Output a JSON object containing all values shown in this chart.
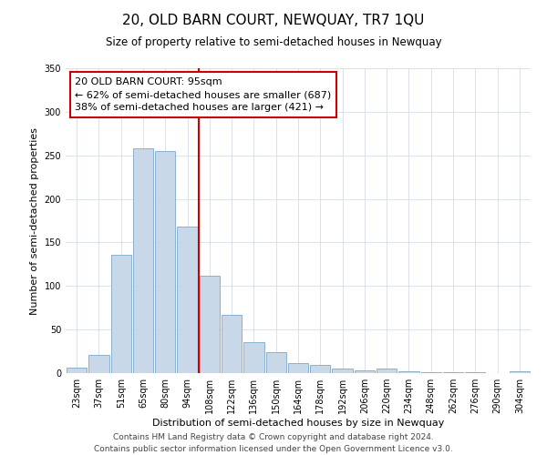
{
  "title": "20, OLD BARN COURT, NEWQUAY, TR7 1QU",
  "subtitle": "Size of property relative to semi-detached houses in Newquay",
  "xlabel": "Distribution of semi-detached houses by size in Newquay",
  "ylabel": "Number of semi-detached properties",
  "footer_line1": "Contains HM Land Registry data © Crown copyright and database right 2024.",
  "footer_line2": "Contains public sector information licensed under the Open Government Licence v3.0.",
  "bar_labels": [
    "23sqm",
    "37sqm",
    "51sqm",
    "65sqm",
    "80sqm",
    "94sqm",
    "108sqm",
    "122sqm",
    "136sqm",
    "150sqm",
    "164sqm",
    "178sqm",
    "192sqm",
    "206sqm",
    "220sqm",
    "234sqm",
    "248sqm",
    "262sqm",
    "276sqm",
    "290sqm",
    "304sqm"
  ],
  "bar_values": [
    6,
    21,
    136,
    258,
    255,
    168,
    112,
    67,
    36,
    24,
    12,
    9,
    5,
    3,
    5,
    2,
    1,
    1,
    1,
    0,
    2
  ],
  "bar_color": "#c8d8e8",
  "bar_edge_color": "#7ba7c7",
  "property_label": "20 OLD BARN COURT: 95sqm",
  "pct_smaller": 62,
  "n_smaller": 687,
  "pct_larger": 38,
  "n_larger": 421,
  "vline_bin_index": 5,
  "ylim": [
    0,
    350
  ],
  "yticks": [
    0,
    50,
    100,
    150,
    200,
    250,
    300,
    350
  ],
  "annotation_box_color": "#ffffff",
  "annotation_box_edge": "#cc0000",
  "vline_color": "#cc0000",
  "title_fontsize": 11,
  "subtitle_fontsize": 8.5,
  "axis_label_fontsize": 8,
  "tick_fontsize": 7,
  "annotation_fontsize": 8,
  "footer_fontsize": 6.5,
  "grid_color": "#d4dde8"
}
